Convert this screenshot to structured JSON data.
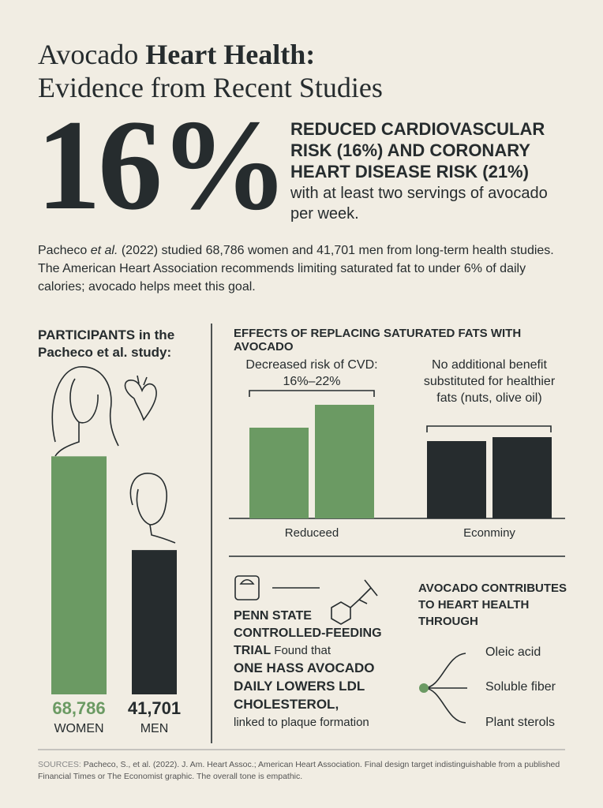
{
  "header": {
    "title_plain": "Avocado ",
    "title_bold": "Heart Health:",
    "title_line2": "Evidence from Recent Studies"
  },
  "hero": {
    "stat": "16%",
    "headline": "REDUCED CARDIOVASCULAR RISK (16%) AND CORONARY HEART DISEASE RISK (21%)",
    "text": "with at least two servings of avocado per week."
  },
  "intro": {
    "author": "Pacheco ",
    "etal": "et al.",
    "text": " (2022) studied 68,786 women and 41,701 men from long-term health studies. The American Heart Association recommends limiting saturated fat to under 6% of daily calories; avocado helps meet this goal."
  },
  "chart_data": [
    {
      "type": "bar",
      "title": "PARTICIPANTS in the Pacheco et al. study:",
      "categories": [
        "WOMEN",
        "MEN"
      ],
      "values": [
        68786,
        41701
      ],
      "value_labels": [
        "68,786",
        "41,701"
      ],
      "colors": [
        "#6b9a63",
        "#262c2e"
      ],
      "ylim": [
        0,
        70000
      ]
    },
    {
      "type": "bar",
      "title": "EFFECTS OF REPLACING SATURATED FATS WITH AVOCADO",
      "categories": [
        "Reduceed",
        "Econminy"
      ],
      "series": [
        {
          "values": [
            115,
            98
          ]
        },
        {
          "values": [
            144,
            103
          ]
        }
      ],
      "colors": [
        "#6b9a63",
        "#262c2e"
      ],
      "ylim": [
        0,
        150
      ],
      "annotations": [
        "Decreased risk of CVD: 16%–22%",
        "No additional benefit substituted for healthier fats (nuts, olive oil)"
      ]
    }
  ],
  "trial": {
    "bold": "PENN STATE CONTROLLED-FEEDING TRIAL",
    "text": " Found that",
    "finding": "ONE HASS AVOCADO DAILY LOWERS LDL CHOLESTEROL,",
    "note": "linked to plaque formation"
  },
  "contributes": {
    "title": "AVOCADO CONTRIBUTES TO HEART HEALTH THROUGH",
    "items": [
      "Oleic acid",
      "Soluble fiber",
      "Plant sterols"
    ]
  },
  "sources": {
    "label": "SOURCES:",
    "text": " Pacheco, S., et al. (2022). J. Am. Heart Assoc.; American Heart Association. Final design target indistinguishable from a published Financial Times or The Economist graphic. The overall tone is empathic."
  }
}
